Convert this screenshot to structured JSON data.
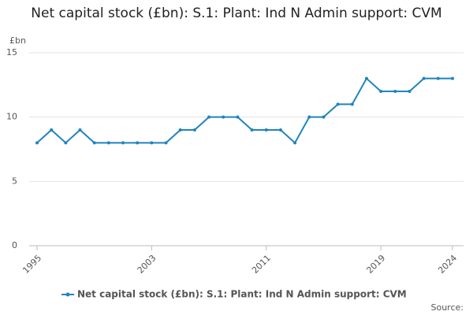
{
  "chart_data": {
    "type": "line",
    "title": "Net capital stock (£bn): S.1: Plant: Ind N Admin support: CVM",
    "y_label": "£bn",
    "source": "Source:",
    "x": [
      1995,
      1996,
      1997,
      1998,
      1999,
      2000,
      2001,
      2002,
      2003,
      2004,
      2005,
      2006,
      2007,
      2008,
      2009,
      2010,
      2011,
      2012,
      2013,
      2014,
      2015,
      2016,
      2017,
      2018,
      2019,
      2020,
      2021,
      2022,
      2023,
      2024
    ],
    "series": [
      {
        "name": "Net capital stock (£bn): S.1: Plant: Ind N Admin support: CVM",
        "color": "#1f84bd",
        "values": [
          8,
          9,
          8,
          9,
          8,
          8,
          8,
          8,
          8,
          8,
          9,
          9,
          10,
          10,
          10,
          9,
          9,
          9,
          8,
          10,
          10,
          11,
          11,
          13,
          12,
          12,
          12,
          13,
          13,
          13
        ]
      }
    ],
    "xlim": [
      1995,
      2024
    ],
    "xticks": [
      1995,
      2003,
      2011,
      2019,
      2024
    ],
    "ylim": [
      0,
      15
    ],
    "yticks": [
      0,
      5,
      10,
      15
    ],
    "grid": true
  }
}
